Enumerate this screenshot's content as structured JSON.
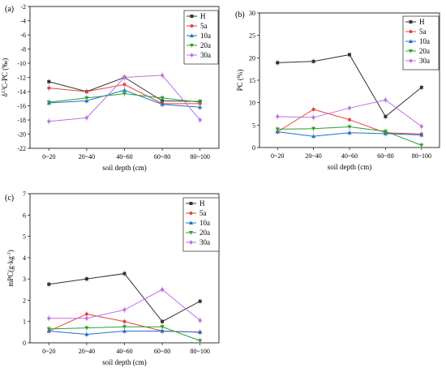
{
  "colors": {
    "H": "#333333",
    "5a": "#e8423a",
    "10a": "#1f6fd1",
    "20a": "#2ca02c",
    "30a": "#c16ee8"
  },
  "chart_data": [
    {
      "panel": "(a)",
      "type": "line",
      "categories": [
        "0~20",
        "20~40",
        "40~60",
        "60~80",
        "80~100"
      ],
      "xlabel": "soil depth (cm)",
      "ylabel": "δ13C-PC (‰)",
      "ylabel_parts": [
        "δ",
        "13",
        "C-PC (‰)"
      ],
      "ylim": [
        -22,
        -2
      ],
      "yticks": [
        -22,
        -20,
        -18,
        -16,
        -14,
        -12,
        -10,
        -8,
        -6,
        -4,
        -2
      ],
      "legend_position": "top-right",
      "series": [
        {
          "name": "H",
          "marker": "square",
          "values": [
            -12.6,
            -14.0,
            -12.0,
            -15.3,
            -15.4
          ]
        },
        {
          "name": "5a",
          "marker": "circle",
          "values": [
            -13.5,
            -14.0,
            -13.0,
            -15.7,
            -15.7
          ]
        },
        {
          "name": "10a",
          "marker": "triangle-up",
          "values": [
            -15.6,
            -15.3,
            -13.8,
            -15.8,
            -16.2
          ]
        },
        {
          "name": "20a",
          "marker": "triangle-down",
          "values": [
            -15.5,
            -14.9,
            -14.3,
            -14.9,
            -15.5
          ]
        },
        {
          "name": "30a",
          "marker": "diamond",
          "values": [
            -18.2,
            -17.7,
            -12.0,
            -11.7,
            -18.0
          ]
        }
      ]
    },
    {
      "panel": "(b)",
      "type": "line",
      "categories": [
        "0~20",
        "20~40",
        "40~60",
        "60~80",
        "80~100"
      ],
      "xlabel": "soil depth (cm)",
      "ylabel": "PC (%)",
      "ylim": [
        0,
        30
      ],
      "yticks": [
        0,
        5,
        10,
        15,
        20,
        25,
        30
      ],
      "legend_position": "top-right",
      "series": [
        {
          "name": "H",
          "marker": "square",
          "values": [
            18.9,
            19.2,
            20.7,
            6.9,
            13.4
          ]
        },
        {
          "name": "5a",
          "marker": "circle",
          "values": [
            3.5,
            8.5,
            6.2,
            3.3,
            3.0
          ]
        },
        {
          "name": "10a",
          "marker": "triangle-up",
          "values": [
            3.5,
            2.5,
            3.3,
            3.1,
            2.8
          ]
        },
        {
          "name": "20a",
          "marker": "triangle-down",
          "values": [
            4.1,
            4.2,
            4.6,
            3.6,
            0.5
          ]
        },
        {
          "name": "30a",
          "marker": "diamond",
          "values": [
            6.9,
            6.7,
            8.8,
            10.6,
            4.7
          ]
        }
      ]
    },
    {
      "panel": "(c)",
      "type": "line",
      "categories": [
        "0~20",
        "20~40",
        "40~60",
        "60~80",
        "80~100"
      ],
      "xlabel": "soil depth (cm)",
      "ylabel": "mPC(g·kg-1)",
      "ylabel_parts": [
        "mPC(g·kg",
        "-1",
        ")"
      ],
      "ylim": [
        0,
        7
      ],
      "yticks": [
        0,
        1,
        2,
        3,
        4,
        5,
        6,
        7
      ],
      "legend_position": "top-right",
      "series": [
        {
          "name": "H",
          "marker": "square",
          "values": [
            2.75,
            3.0,
            3.25,
            1.0,
            1.95
          ]
        },
        {
          "name": "5a",
          "marker": "circle",
          "values": [
            0.55,
            1.35,
            1.0,
            0.55,
            0.5
          ]
        },
        {
          "name": "10a",
          "marker": "triangle-up",
          "values": [
            0.55,
            0.4,
            0.55,
            0.55,
            0.5
          ]
        },
        {
          "name": "20a",
          "marker": "triangle-down",
          "values": [
            0.65,
            0.7,
            0.75,
            0.75,
            0.1
          ]
        },
        {
          "name": "30a",
          "marker": "diamond",
          "values": [
            1.15,
            1.15,
            1.55,
            2.5,
            1.05
          ]
        }
      ]
    }
  ]
}
